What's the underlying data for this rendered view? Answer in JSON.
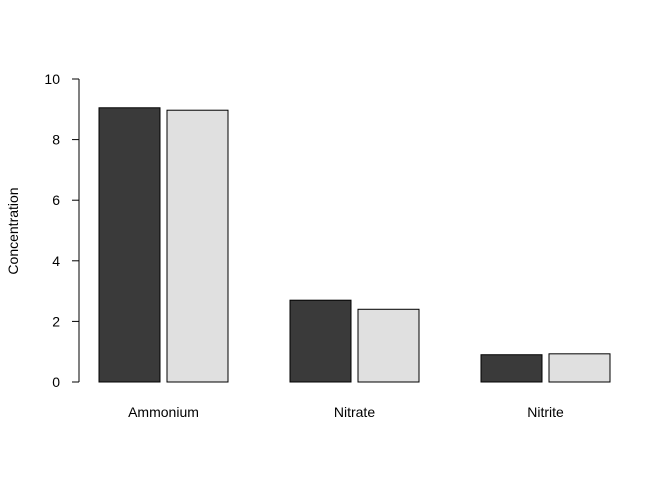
{
  "chart_data": {
    "type": "bar",
    "categories": [
      "Ammonium",
      "Nitrate",
      "Nitrite"
    ],
    "series": [
      {
        "values": [
          9.05,
          2.7,
          0.9
        ],
        "color": "#3a3a3a"
      },
      {
        "values": [
          8.97,
          2.4,
          0.93
        ],
        "color": "#e0e0e0"
      }
    ],
    "title": "",
    "xlabel": "",
    "ylabel": "Concentration",
    "ylim": [
      0,
      10
    ],
    "yticks": [
      "0",
      "2",
      "4",
      "6",
      "8",
      "10"
    ],
    "grid": false
  }
}
